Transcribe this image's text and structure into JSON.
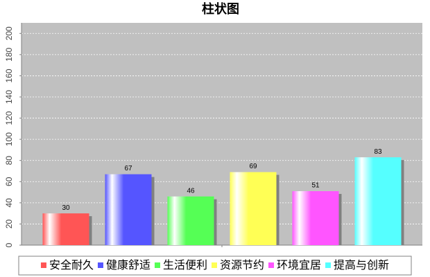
{
  "chart_data": {
    "type": "bar",
    "title": "柱状图",
    "categories": [
      null
    ],
    "series": [
      {
        "name": "安全耐久",
        "color": "#ff5555",
        "values": [
          30
        ]
      },
      {
        "name": "健康舒适",
        "color": "#5555ff",
        "values": [
          67
        ]
      },
      {
        "name": "生活便利",
        "color": "#55ff55",
        "values": [
          46
        ]
      },
      {
        "name": "资源节约",
        "color": "#ffff55",
        "values": [
          69
        ]
      },
      {
        "name": "环境宜居",
        "color": "#ff55ff",
        "values": [
          51
        ]
      },
      {
        "name": "提高与创新",
        "color": "#55ffff",
        "values": [
          83
        ]
      }
    ],
    "ylim": [
      0,
      210
    ],
    "yticks": [
      0,
      20,
      40,
      60,
      80,
      100,
      120,
      140,
      160,
      180,
      200
    ],
    "grid": true,
    "legend": "bottom"
  }
}
